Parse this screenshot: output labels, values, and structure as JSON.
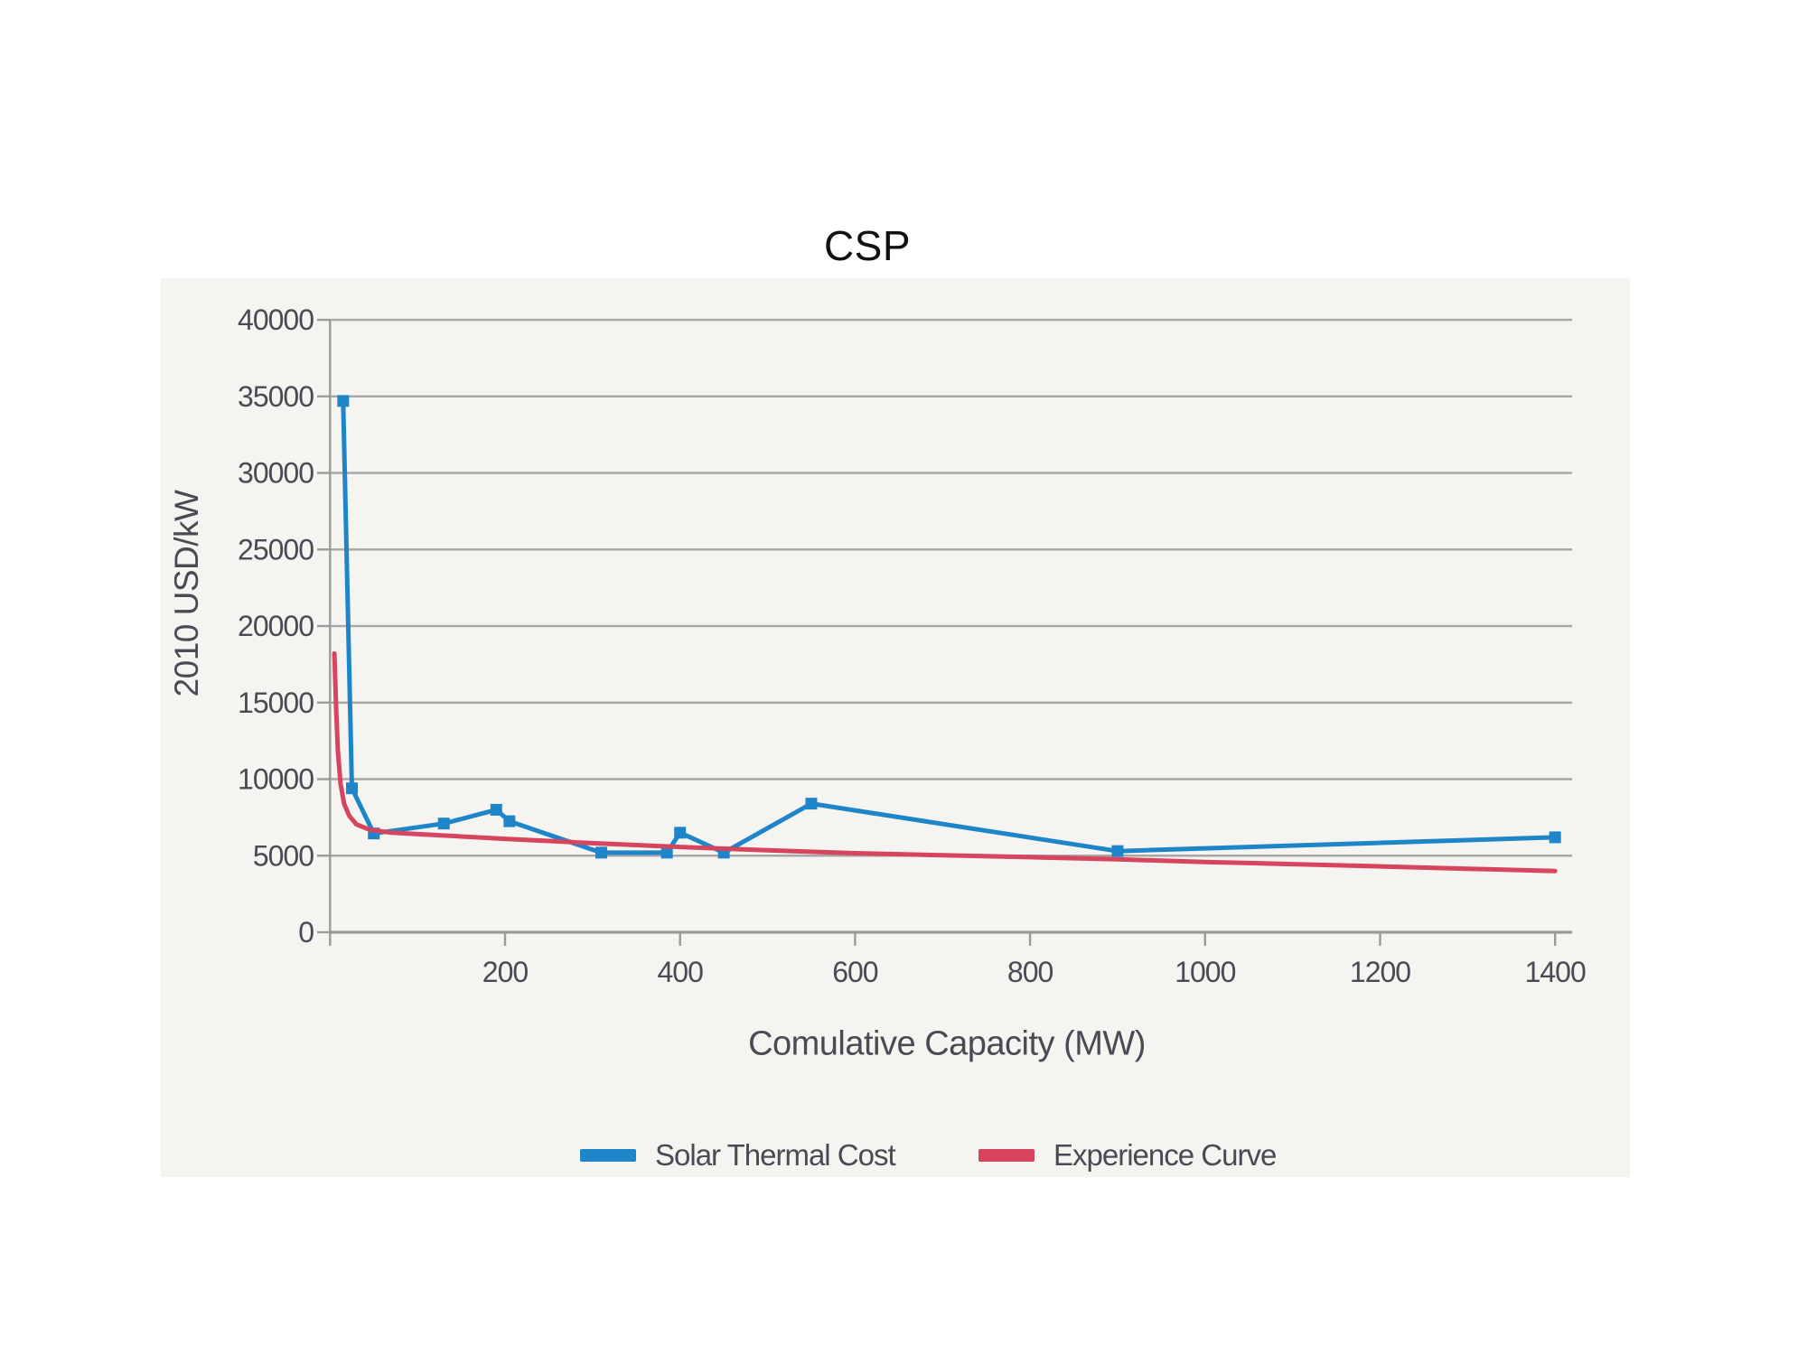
{
  "page": {
    "background": "#ffffff"
  },
  "title": "CSP",
  "chart_data": {
    "type": "line",
    "title": "CSP",
    "xlabel": "Comulative Capacity (MW)",
    "ylabel": "2010 USD/kW",
    "xlim": [
      0,
      1420
    ],
    "ylim": [
      0,
      40000
    ],
    "x_ticks": [
      200,
      400,
      600,
      800,
      1000,
      1200,
      1400
    ],
    "y_ticks": [
      0,
      5000,
      10000,
      15000,
      20000,
      25000,
      30000,
      35000,
      40000
    ],
    "grid": "horizontal-only",
    "legend_position": "bottom",
    "colors": {
      "plot_background": "#f5f4f1",
      "grid": "#a6a6a6",
      "axis": "#9a9a9a",
      "text": "#4a4a55",
      "title": "#111111",
      "solar_thermal": "#1e86c8",
      "experience": "#d6445e"
    },
    "series": [
      {
        "id": "solar-thermal-cost",
        "name": "Solar Thermal Cost",
        "color": "#1e86c8",
        "marker": "square",
        "points": [
          [
            15,
            34700
          ],
          [
            25,
            9400
          ],
          [
            50,
            6450
          ],
          [
            130,
            7100
          ],
          [
            190,
            8000
          ],
          [
            205,
            7250
          ],
          [
            310,
            5200
          ],
          [
            385,
            5200
          ],
          [
            400,
            6500
          ],
          [
            450,
            5200
          ],
          [
            550,
            8400
          ],
          [
            900,
            5300
          ],
          [
            1400,
            6200
          ]
        ]
      },
      {
        "id": "experience-curve",
        "name": "Experience Curve",
        "color": "#d6445e",
        "marker": "none",
        "points": [
          [
            5,
            18200
          ],
          [
            7,
            14500
          ],
          [
            9,
            11800
          ],
          [
            12,
            9700
          ],
          [
            16,
            8400
          ],
          [
            22,
            7600
          ],
          [
            30,
            7050
          ],
          [
            45,
            6700
          ],
          [
            70,
            6500
          ],
          [
            110,
            6380
          ],
          [
            200,
            6100
          ],
          [
            300,
            5820
          ],
          [
            400,
            5570
          ],
          [
            500,
            5350
          ],
          [
            600,
            5160
          ],
          [
            700,
            5030
          ],
          [
            800,
            4900
          ],
          [
            900,
            4760
          ],
          [
            1000,
            4590
          ],
          [
            1100,
            4450
          ],
          [
            1200,
            4300
          ],
          [
            1300,
            4150
          ],
          [
            1400,
            4000
          ]
        ]
      }
    ]
  },
  "legend": {
    "items": [
      {
        "label": "Solar Thermal Cost",
        "color": "#1e86c8"
      },
      {
        "label": "Experience Curve",
        "color": "#d6445e"
      }
    ]
  }
}
